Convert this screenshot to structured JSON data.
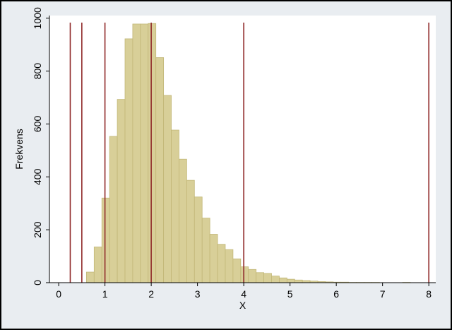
{
  "chart_data": {
    "type": "bar",
    "title": "",
    "xlabel": "X",
    "ylabel": "Frekvens",
    "xlim": [
      -0.2,
      8.15
    ],
    "ylim": [
      0,
      1010
    ],
    "xticks": [
      0,
      1,
      2,
      3,
      4,
      5,
      6,
      7,
      8
    ],
    "yticks": [
      0,
      200,
      400,
      600,
      800,
      1000
    ],
    "grid": false,
    "bin_width": 0.1667,
    "bin_start": 0.6,
    "values": [
      40,
      135,
      320,
      553,
      693,
      922,
      978,
      978,
      980,
      851,
      708,
      577,
      467,
      387,
      324,
      244,
      183,
      145,
      125,
      90,
      60,
      50,
      38,
      35,
      25,
      18,
      13,
      10,
      8,
      6,
      4,
      3,
      2,
      2,
      1,
      1,
      1,
      1,
      0,
      0,
      0,
      1,
      0,
      0,
      0
    ],
    "vertical_lines": [
      0.25,
      0.5,
      1,
      2,
      4,
      8
    ],
    "colors": {
      "bar_fill": "#d8cf98",
      "bar_stroke": "#c2b777",
      "vline": "#902a2a",
      "plot_bg": "#ffffff",
      "outer_bg": "#e9edf1"
    }
  }
}
